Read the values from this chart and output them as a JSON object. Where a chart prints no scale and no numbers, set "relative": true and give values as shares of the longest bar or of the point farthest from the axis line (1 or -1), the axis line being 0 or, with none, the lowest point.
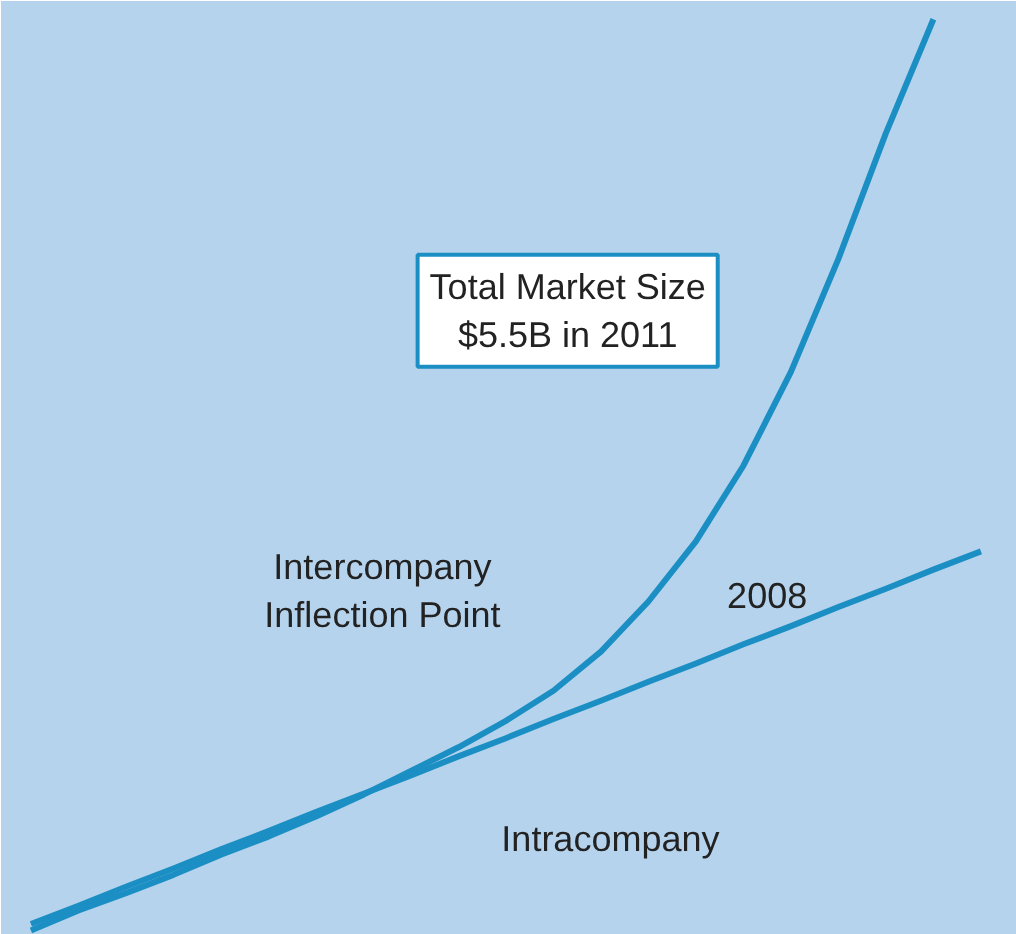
{
  "chart_data": {
    "type": "line",
    "relative": true,
    "categories": [
      null,
      null,
      null,
      null,
      null,
      null,
      null,
      null,
      null,
      null,
      null,
      null,
      null,
      null,
      null,
      null,
      null,
      null,
      null,
      null,
      null
    ],
    "series": [
      {
        "color": "#1b8fc4",
        "values": [
          0,
          0.022,
          0.041,
          0.061,
          0.083,
          0.103,
          0.125,
          0.149,
          0.175,
          0.201,
          0.23,
          0.263,
          0.306,
          0.361,
          0.427,
          0.51,
          0.613,
          0.737,
          0.875,
          1,
          null
        ]
      },
      {
        "name": "Intracompany",
        "color": "#1b8fc4",
        "values": [
          0.007,
          0.027,
          0.048,
          0.068,
          0.089,
          0.109,
          0.13,
          0.15,
          0.17,
          0.191,
          0.211,
          0.232,
          0.252,
          0.273,
          0.293,
          0.314,
          0.334,
          0.355,
          0.375,
          0.396,
          0.416
        ]
      }
    ],
    "annotations": [
      "Total Market Size\n$5.5B in 2011",
      "Intercompany\nInflection Point",
      "2008"
    ],
    "grid": false,
    "marker": "none",
    "line_style": "solid"
  }
}
